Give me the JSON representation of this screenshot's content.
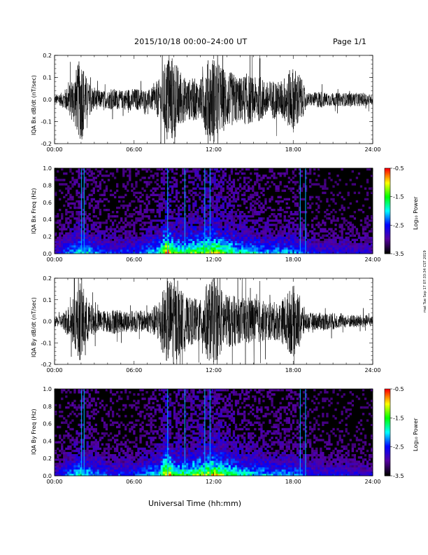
{
  "header": {
    "title": "2015/10/18   00:00–24:00 UT",
    "page": "Page 1/1"
  },
  "footer": {
    "xlabel": "Universal Time (hh:mm)"
  },
  "side_stamp": "mat Tue Sep 17 07:33:34 CST 2019",
  "colors": {
    "trace": "#000000",
    "background": "#ffffff",
    "spectrogram_bg": "#000000"
  },
  "colorbar": {
    "label": "Log₁₀ Power",
    "ticks": [
      "-0.5",
      "-1.5",
      "-2.5",
      "-3.5"
    ],
    "colors": [
      "#ff0000",
      "#ffff00",
      "#00ff00",
      "#00ffff",
      "#0000ff",
      "#5500a0",
      "#000000"
    ]
  },
  "chart_data": [
    {
      "type": "line",
      "ylabel": "IQA Bx dB/dt (nT/sec)",
      "ylim": [
        -0.2,
        0.2
      ],
      "yticks": [
        "0.2",
        "0.1",
        "0.0",
        "-0.1",
        "-0.2"
      ],
      "xticks": [
        "00:00",
        "06:00",
        "12:00",
        "18:00",
        "24:00"
      ],
      "xlim_hours": [
        0,
        24
      ],
      "envelope_hours": [
        0,
        0.5,
        1,
        1.5,
        2,
        2.5,
        3,
        3.5,
        4,
        4.5,
        5,
        5.5,
        6,
        6.5,
        7,
        7.5,
        8,
        8.5,
        9,
        9.5,
        10,
        10.5,
        11,
        11.5,
        12,
        12.5,
        13,
        13.5,
        14,
        14.5,
        15,
        15.5,
        16,
        16.5,
        17,
        17.5,
        18,
        18.5,
        19,
        19.5,
        20,
        20.5,
        21,
        21.5,
        22,
        22.5,
        23,
        23.5,
        24
      ],
      "envelope_amplitude": [
        0.02,
        0.03,
        0.06,
        0.12,
        0.2,
        0.08,
        0.05,
        0.04,
        0.04,
        0.05,
        0.04,
        0.05,
        0.05,
        0.05,
        0.04,
        0.06,
        0.1,
        0.2,
        0.2,
        0.12,
        0.09,
        0.1,
        0.08,
        0.18,
        0.2,
        0.16,
        0.13,
        0.12,
        0.1,
        0.12,
        0.1,
        0.1,
        0.08,
        0.09,
        0.08,
        0.12,
        0.15,
        0.12,
        0.03,
        0.03,
        0.04,
        0.03,
        0.03,
        0.03,
        0.03,
        0.03,
        0.03,
        0.03,
        0.02
      ]
    },
    {
      "type": "heatmap",
      "ylabel": "IQA Bx Freq (Hz)",
      "ylim": [
        0.0,
        1.0
      ],
      "yticks": [
        "1.0",
        "0.8",
        "0.6",
        "0.4",
        "0.2",
        "0.0"
      ],
      "xticks": [
        "00:00",
        "06:00",
        "12:00",
        "18:00",
        "24:00"
      ],
      "xlim_hours": [
        0,
        24
      ],
      "zlim": [
        -3.5,
        -0.5
      ],
      "bright_columns_hours": [
        2.0,
        2.2,
        8.5,
        9.8,
        11.3,
        11.7,
        18.5,
        18.9
      ],
      "activity_hours": [
        0,
        2,
        4,
        6,
        8,
        8.5,
        9,
        10,
        11,
        12,
        13,
        14,
        16,
        18,
        19,
        20,
        22,
        24
      ],
      "activity_level": [
        0.2,
        0.5,
        0.3,
        0.3,
        0.5,
        1.0,
        0.6,
        0.6,
        0.7,
        0.8,
        0.6,
        0.5,
        0.4,
        0.4,
        0.3,
        0.25,
        0.25,
        0.2
      ]
    },
    {
      "type": "line",
      "ylabel": "IQA By dB/dt (nT/sec)",
      "ylim": [
        -0.2,
        0.2
      ],
      "yticks": [
        "0.2",
        "0.1",
        "0.0",
        "-0.1",
        "-0.2"
      ],
      "xticks": [
        "00:00",
        "06:00",
        "12:00",
        "18:00",
        "24:00"
      ],
      "xlim_hours": [
        0,
        24
      ],
      "envelope_hours": [
        0,
        0.5,
        1,
        1.5,
        2,
        2.5,
        3,
        3.5,
        4,
        4.5,
        5,
        5.5,
        6,
        6.5,
        7,
        7.5,
        8,
        8.5,
        9,
        9.5,
        10,
        10.5,
        11,
        11.5,
        12,
        12.5,
        13,
        13.5,
        14,
        14.5,
        15,
        15.5,
        16,
        16.5,
        17,
        17.5,
        18,
        18.5,
        19,
        19.5,
        20,
        20.5,
        21,
        21.5,
        22,
        22.5,
        23,
        23.5,
        24
      ],
      "envelope_amplitude": [
        0.02,
        0.03,
        0.07,
        0.12,
        0.2,
        0.1,
        0.06,
        0.05,
        0.05,
        0.06,
        0.05,
        0.05,
        0.05,
        0.05,
        0.05,
        0.07,
        0.12,
        0.2,
        0.2,
        0.15,
        0.11,
        0.11,
        0.1,
        0.18,
        0.2,
        0.16,
        0.12,
        0.12,
        0.1,
        0.12,
        0.11,
        0.1,
        0.09,
        0.09,
        0.09,
        0.13,
        0.17,
        0.12,
        0.04,
        0.04,
        0.04,
        0.04,
        0.04,
        0.03,
        0.03,
        0.03,
        0.03,
        0.03,
        0.02
      ]
    },
    {
      "type": "heatmap",
      "ylabel": "IQA By Freq (Hz)",
      "ylim": [
        0.0,
        1.0
      ],
      "yticks": [
        "1.0",
        "0.8",
        "0.6",
        "0.4",
        "0.2",
        "0.0"
      ],
      "xticks": [
        "00:00",
        "06:00",
        "12:00",
        "18:00",
        "24:00"
      ],
      "xlim_hours": [
        0,
        24
      ],
      "zlim": [
        -3.5,
        -0.5
      ],
      "bright_columns_hours": [
        2.0,
        2.2,
        8.5,
        9.8,
        11.3,
        11.7,
        18.5,
        18.9
      ],
      "activity_hours": [
        0,
        2,
        4,
        6,
        8,
        8.5,
        9,
        10,
        11,
        12,
        13,
        14,
        16,
        18,
        19,
        20,
        22,
        24
      ],
      "activity_level": [
        0.2,
        0.5,
        0.3,
        0.3,
        0.5,
        1.0,
        0.6,
        0.6,
        0.7,
        0.8,
        0.6,
        0.5,
        0.4,
        0.4,
        0.3,
        0.25,
        0.25,
        0.2
      ]
    }
  ]
}
